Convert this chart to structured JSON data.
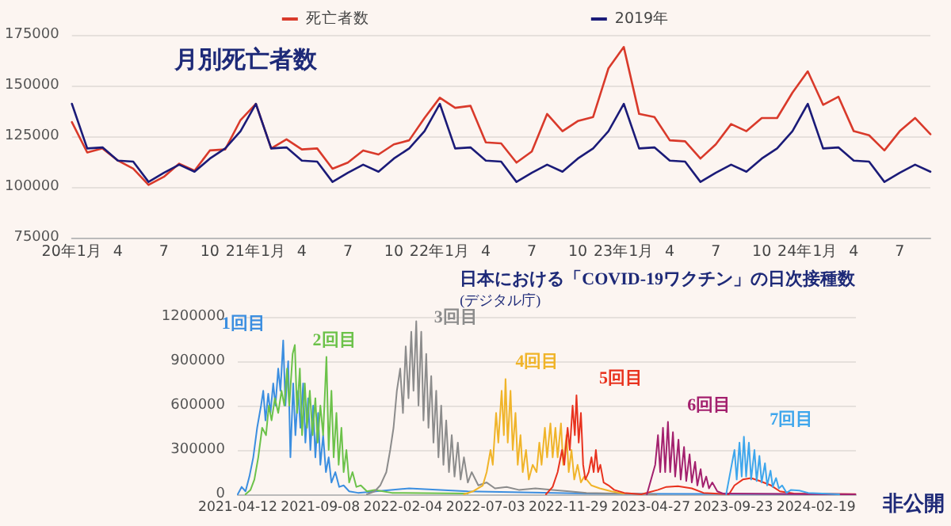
{
  "chart_data": [
    {
      "type": "line",
      "title": "月別死亡者数",
      "categories": [
        "20年1月",
        null,
        null,
        "4",
        null,
        null,
        "7",
        null,
        null,
        "10",
        null,
        null,
        "21年1月",
        null,
        null,
        "4",
        null,
        null,
        "7",
        null,
        null,
        "10",
        null,
        null,
        "22年1月",
        null,
        null,
        "4",
        null,
        null,
        "7",
        null,
        null,
        "10",
        null,
        null,
        "23年1月",
        null,
        null,
        "4",
        null,
        null,
        "7",
        null,
        null,
        "10",
        null,
        null,
        "24年1月",
        null,
        null,
        "4",
        null,
        null,
        "7",
        null,
        null
      ],
      "series": [
        {
          "name": "死亡者数",
          "color": "#d93a2b",
          "values": [
            132000,
            117000,
            119000,
            113000,
            109000,
            101000,
            105000,
            111500,
            108000,
            118000,
            118500,
            133000,
            141000,
            119000,
            123500,
            118500,
            119000,
            109000,
            112000,
            118000,
            116000,
            121000,
            123000,
            134000,
            144000,
            139000,
            140000,
            122000,
            121500,
            112000,
            117500,
            136000,
            127500,
            132500,
            134500,
            158500,
            169000,
            136000,
            134500,
            123000,
            122500,
            114000,
            121000,
            131000,
            127500,
            134000,
            134000,
            146500,
            157000,
            140500,
            144500,
            127500,
            125500,
            118000,
            127500,
            134000,
            126000
          ]
        },
        {
          "name": "2019年",
          "color": "#1b1b78",
          "values": [
            141000,
            119000,
            119500,
            113000,
            112500,
            102500,
            107000,
            111000,
            107500,
            114000,
            119000,
            127500,
            141000,
            119000,
            119500,
            113000,
            112500,
            102500,
            107000,
            111000,
            107500,
            114000,
            119000,
            127500,
            141000,
            119000,
            119500,
            113000,
            112500,
            102500,
            107000,
            111000,
            107500,
            114000,
            119000,
            127500,
            141000,
            119000,
            119500,
            113000,
            112500,
            102500,
            107000,
            111000,
            107500,
            114000,
            119000,
            127500,
            141000,
            119000,
            119500,
            113000,
            112500,
            102500,
            107000,
            111000,
            107500
          ]
        }
      ],
      "ylim": [
        75000,
        175000
      ],
      "yticks": [
        75000,
        100000,
        125000,
        150000,
        175000
      ],
      "grid": "y",
      "legend": "top",
      "marker": "none",
      "line_style": "solid"
    },
    {
      "type": "line",
      "title": "日本における「COVID-19ワクチン」の日次接種数",
      "subtitle": "(デジタル庁)",
      "annotations": [
        "非公開"
      ],
      "xlim": [
        "2021-04-12",
        "2024-05-01"
      ],
      "xticks": [
        "2021-04-12",
        "2021-09-08",
        "2022-02-04",
        "2022-07-03",
        "2022-11-29",
        "2023-04-27",
        "2023-09-23",
        "2024-02-19"
      ],
      "ylim": [
        0,
        1200000
      ],
      "yticks": [
        0,
        300000,
        600000,
        900000,
        1200000
      ],
      "grid": "y",
      "legend": false,
      "marker": "none",
      "line_style": "solid",
      "series": [
        {
          "name": "1回目",
          "color": "#3b8ee0",
          "x": [
            "2021-04-12",
            "2021-04-19",
            "2021-04-26",
            "2021-05-03",
            "2021-05-10",
            "2021-05-17",
            "2021-05-24",
            "2021-05-28",
            "2021-06-01",
            "2021-06-06",
            "2021-06-10",
            "2021-06-15",
            "2021-06-19",
            "2021-06-24",
            "2021-06-28",
            "2021-07-03",
            "2021-07-07",
            "2021-07-12",
            "2021-07-16",
            "2021-07-21",
            "2021-07-25",
            "2021-07-30",
            "2021-08-03",
            "2021-08-08",
            "2021-08-12",
            "2021-08-17",
            "2021-08-21",
            "2021-08-26",
            "2021-08-30",
            "2021-09-04",
            "2021-09-08",
            "2021-09-13",
            "2021-09-18",
            "2021-09-23",
            "2021-09-28",
            "2021-10-05",
            "2021-10-12",
            "2021-10-20",
            "2021-10-30",
            "2021-11-15",
            "2022-02-15",
            "2022-06-01",
            "2023-01-01",
            "2024-04-30"
          ],
          "values": [
            0,
            50000,
            20000,
            120000,
            250000,
            450000,
            600000,
            700000,
            500000,
            680000,
            550000,
            750000,
            600000,
            850000,
            700000,
            1040000,
            600000,
            900000,
            250000,
            750000,
            400000,
            700000,
            450000,
            750000,
            350000,
            650000,
            300000,
            600000,
            250000,
            550000,
            200000,
            400000,
            150000,
            250000,
            80000,
            150000,
            50000,
            60000,
            20000,
            10000,
            40000,
            20000,
            5000,
            0
          ]
        },
        {
          "name": "2回目",
          "color": "#6cc24a",
          "x": [
            "2021-04-26",
            "2021-05-05",
            "2021-05-12",
            "2021-05-19",
            "2021-05-26",
            "2021-06-02",
            "2021-06-07",
            "2021-06-12",
            "2021-06-18",
            "2021-06-24",
            "2021-06-30",
            "2021-07-05",
            "2021-07-10",
            "2021-07-14",
            "2021-07-20",
            "2021-07-24",
            "2021-07-28",
            "2021-08-02",
            "2021-08-06",
            "2021-08-11",
            "2021-08-15",
            "2021-08-20",
            "2021-08-25",
            "2021-08-30",
            "2021-09-03",
            "2021-09-08",
            "2021-09-13",
            "2021-09-19",
            "2021-09-23",
            "2021-09-28",
            "2021-10-02",
            "2021-10-07",
            "2021-10-11",
            "2021-10-16",
            "2021-10-20",
            "2021-10-25",
            "2021-10-30",
            "2021-11-05",
            "2021-11-12",
            "2021-11-20",
            "2021-12-01",
            "2021-12-15",
            "2022-01-15",
            "2022-06-01"
          ],
          "values": [
            0,
            30000,
            100000,
            250000,
            450000,
            400000,
            600000,
            500000,
            650000,
            550000,
            700000,
            600000,
            850000,
            600000,
            950000,
            1010000,
            550000,
            850000,
            400000,
            750000,
            450000,
            700000,
            400000,
            650000,
            350000,
            600000,
            400000,
            930000,
            300000,
            700000,
            250000,
            550000,
            200000,
            450000,
            150000,
            300000,
            80000,
            150000,
            50000,
            60000,
            20000,
            30000,
            10000,
            5000
          ]
        },
        {
          "name": "3回目",
          "color": "#8c8c8c",
          "x": [
            "2021-12-01",
            "2021-12-15",
            "2021-12-25",
            "2022-01-05",
            "2022-01-12",
            "2022-01-18",
            "2022-01-24",
            "2022-01-30",
            "2022-02-04",
            "2022-02-09",
            "2022-02-14",
            "2022-02-19",
            "2022-02-23",
            "2022-02-28",
            "2022-03-04",
            "2022-03-09",
            "2022-03-13",
            "2022-03-18",
            "2022-03-22",
            "2022-03-27",
            "2022-03-31",
            "2022-04-05",
            "2022-04-09",
            "2022-04-14",
            "2022-04-18",
            "2022-04-23",
            "2022-04-28",
            "2022-05-03",
            "2022-05-08",
            "2022-05-14",
            "2022-05-19",
            "2022-05-25",
            "2022-06-01",
            "2022-06-08",
            "2022-06-20",
            "2022-07-05",
            "2022-07-20",
            "2022-08-10",
            "2022-09-01",
            "2022-10-01",
            "2022-11-01",
            "2022-12-01",
            "2023-01-01",
            "2023-03-01",
            "2023-05-07"
          ],
          "values": [
            0,
            20000,
            60000,
            150000,
            300000,
            450000,
            700000,
            850000,
            550000,
            1000000,
            650000,
            1100000,
            700000,
            1170000,
            600000,
            1100000,
            500000,
            950000,
            450000,
            800000,
            350000,
            700000,
            250000,
            600000,
            200000,
            500000,
            150000,
            400000,
            120000,
            350000,
            100000,
            250000,
            80000,
            150000,
            60000,
            80000,
            40000,
            50000,
            30000,
            40000,
            30000,
            20000,
            10000,
            5000,
            0
          ]
        },
        {
          "name": "4回目",
          "color": "#f0b429",
          "x": [
            "2022-05-25",
            "2022-06-10",
            "2022-06-28",
            "2022-07-05",
            "2022-07-12",
            "2022-07-16",
            "2022-07-22",
            "2022-07-26",
            "2022-08-01",
            "2022-08-05",
            "2022-08-08",
            "2022-08-12",
            "2022-08-17",
            "2022-08-21",
            "2022-08-26",
            "2022-08-30",
            "2022-09-04",
            "2022-09-08",
            "2022-09-14",
            "2022-09-19",
            "2022-09-26",
            "2022-10-03",
            "2022-10-08",
            "2022-10-12",
            "2022-10-18",
            "2022-10-22",
            "2022-10-28",
            "2022-11-01",
            "2022-11-06",
            "2022-11-10",
            "2022-11-16",
            "2022-11-20",
            "2022-11-26",
            "2022-11-30",
            "2022-12-05",
            "2022-12-10",
            "2022-12-16",
            "2022-12-22",
            "2022-12-28",
            "2023-01-10",
            "2023-01-25",
            "2023-02-15",
            "2023-03-10"
          ],
          "values": [
            0,
            20000,
            60000,
            150000,
            300000,
            200000,
            550000,
            350000,
            700000,
            400000,
            780000,
            350000,
            700000,
            300000,
            550000,
            200000,
            400000,
            150000,
            300000,
            100000,
            200000,
            150000,
            350000,
            200000,
            450000,
            250000,
            480000,
            250000,
            450000,
            250000,
            480000,
            200000,
            400000,
            150000,
            300000,
            100000,
            200000,
            80000,
            120000,
            60000,
            40000,
            20000,
            5000
          ]
        },
        {
          "name": "5回目",
          "color": "#e8321e",
          "x": [
            "2022-10-20",
            "2022-11-01",
            "2022-11-10",
            "2022-11-18",
            "2022-11-22",
            "2022-11-28",
            "2022-12-02",
            "2022-12-07",
            "2022-12-11",
            "2022-12-14",
            "2022-12-18",
            "2022-12-22",
            "2022-12-26",
            "2022-12-30",
            "2023-01-05",
            "2023-01-10",
            "2023-01-14",
            "2023-01-18",
            "2023-01-22",
            "2023-01-26",
            "2023-02-01",
            "2023-02-10",
            "2023-02-20",
            "2023-03-10",
            "2023-04-10",
            "2023-05-10",
            "2023-05-25",
            "2023-06-15",
            "2023-07-10",
            "2023-07-31",
            "2023-09-15",
            "2023-09-25",
            "2023-10-10",
            "2023-10-25",
            "2023-11-10",
            "2023-11-30",
            "2023-12-16",
            "2024-01-10",
            "2024-04-30"
          ],
          "values": [
            0,
            50000,
            150000,
            300000,
            200000,
            450000,
            300000,
            600000,
            400000,
            670000,
            350000,
            550000,
            200000,
            100000,
            150000,
            250000,
            150000,
            300000,
            150000,
            200000,
            80000,
            60000,
            30000,
            10000,
            0,
            30000,
            50000,
            55000,
            40000,
            10000,
            0,
            60000,
            100000,
            110000,
            90000,
            60000,
            20000,
            5000,
            2000
          ]
        },
        {
          "name": "6回目",
          "color": "#a3206e",
          "x": [
            "2023-04-20",
            "2023-05-05",
            "2023-05-10",
            "2023-05-14",
            "2023-05-19",
            "2023-05-23",
            "2023-05-28",
            "2023-06-01",
            "2023-06-06",
            "2023-06-10",
            "2023-06-16",
            "2023-06-20",
            "2023-06-26",
            "2023-06-30",
            "2023-07-06",
            "2023-07-10",
            "2023-07-16",
            "2023-07-20",
            "2023-07-26",
            "2023-07-30",
            "2023-08-05",
            "2023-08-10",
            "2023-08-16",
            "2023-08-25",
            "2023-09-05",
            "2024-04-30"
          ],
          "values": [
            0,
            200000,
            400000,
            150000,
            450000,
            150000,
            490000,
            150000,
            420000,
            120000,
            370000,
            100000,
            320000,
            90000,
            270000,
            80000,
            220000,
            60000,
            170000,
            50000,
            120000,
            40000,
            80000,
            20000,
            5000,
            0
          ]
        },
        {
          "name": "7回目",
          "color": "#3ea6ec",
          "x": [
            "2023-09-10",
            "2023-09-20",
            "2023-09-25",
            "2023-09-29",
            "2023-10-04",
            "2023-10-08",
            "2023-10-12",
            "2023-10-16",
            "2023-10-21",
            "2023-10-25",
            "2023-10-31",
            "2023-11-04",
            "2023-11-09",
            "2023-11-13",
            "2023-11-19",
            "2023-11-23",
            "2023-11-29",
            "2023-12-03",
            "2023-12-09",
            "2023-12-14",
            "2023-12-20",
            "2023-12-28",
            "2024-01-05",
            "2024-01-20",
            "2024-02-05",
            "2024-03-01",
            "2024-04-01"
          ],
          "values": [
            0,
            200000,
            300000,
            100000,
            350000,
            120000,
            390000,
            120000,
            350000,
            100000,
            300000,
            90000,
            260000,
            80000,
            210000,
            60000,
            160000,
            50000,
            110000,
            40000,
            60000,
            10000,
            30000,
            25000,
            10000,
            5000,
            0
          ]
        }
      ]
    }
  ]
}
